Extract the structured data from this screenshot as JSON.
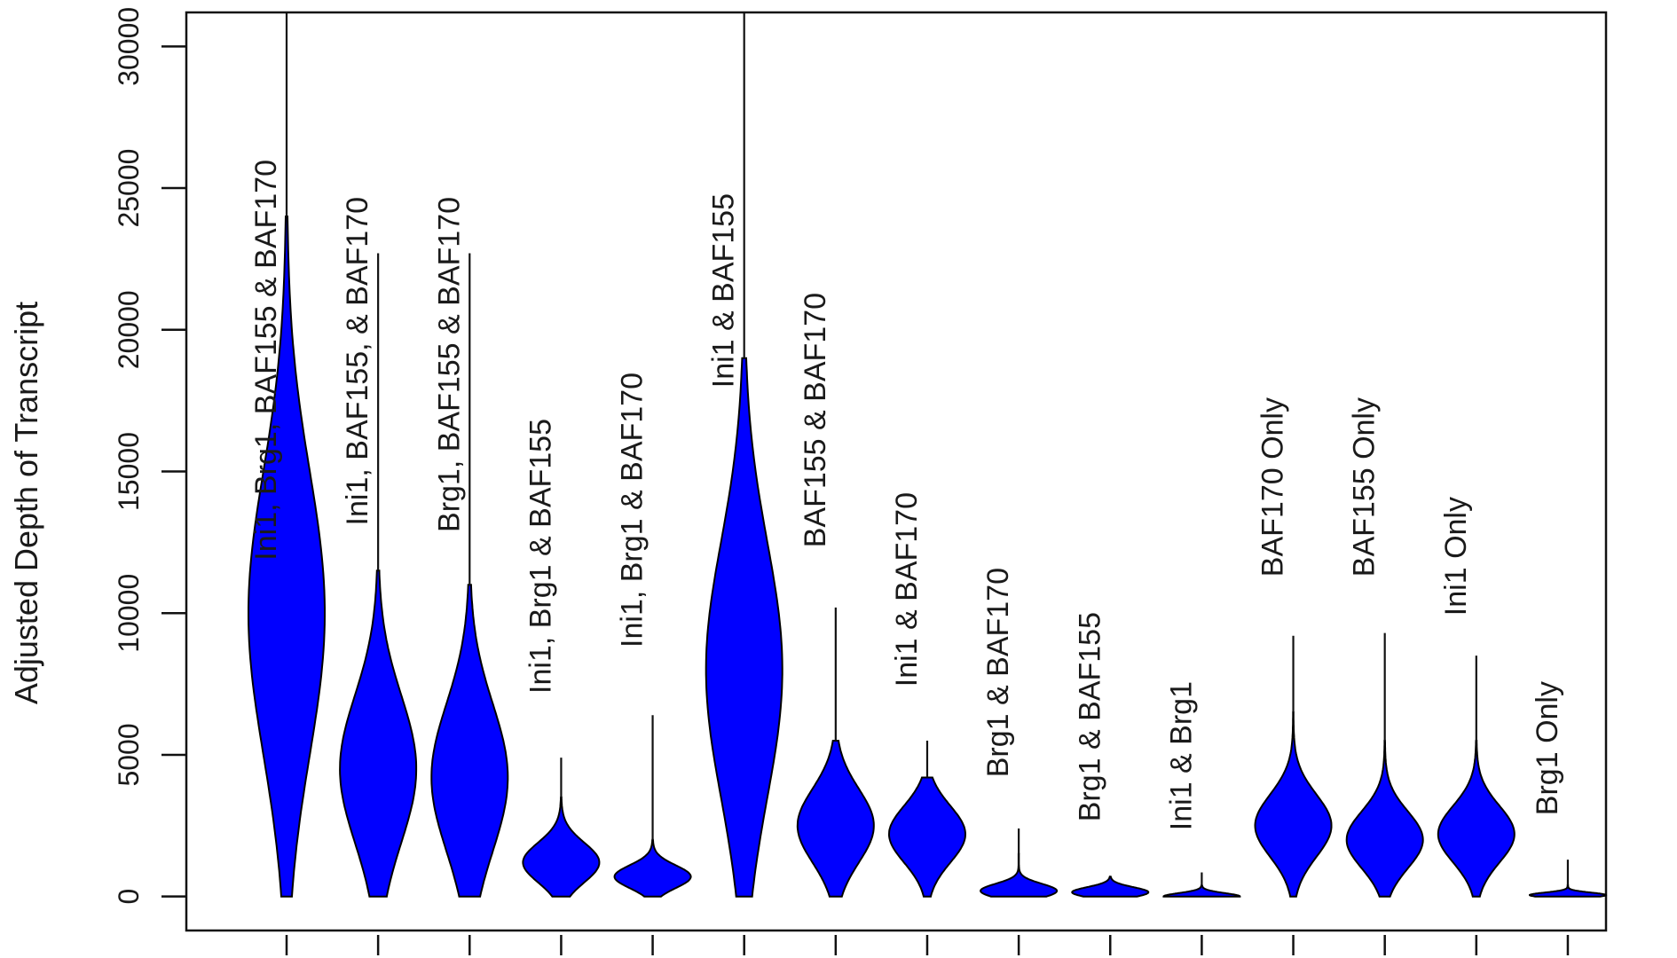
{
  "chart_data": {
    "type": "violin",
    "title": "",
    "xlabel": "",
    "ylabel": "Adjusted Depth of Transcript",
    "ylim": [
      -1200,
      31200
    ],
    "yticks": [
      0,
      5000,
      10000,
      15000,
      20000,
      25000,
      30000
    ],
    "grid": false,
    "fill_color": "#0000ff",
    "outline_color": "#000000",
    "categories": [
      "Ini1, Brg1, BAF155 & BAF170",
      "Ini1, BAF155, & BAF170",
      "Brg1, BAF155 & BAF170",
      "Ini1, Brg1 & BAF155",
      "Ini1, Brg1 & BAF170",
      "Ini1 & BAF155",
      "BAF155 & BAF170",
      "Ini1 & BAF170",
      "Brg1 & BAF170",
      "Brg1 & BAF155",
      "Ini1 & Brg1",
      "BAF170 Only",
      "BAF155 Only",
      "Ini1 Only",
      "Brg1 Only"
    ],
    "series": [
      {
        "max": 31200,
        "violin_top": 24000,
        "mode": 10000,
        "spread": 5000
      },
      {
        "max": 22700,
        "violin_top": 11500,
        "mode": 4500,
        "spread": 2600
      },
      {
        "max": 22700,
        "violin_top": 11000,
        "mode": 4200,
        "spread": 2600
      },
      {
        "max": 4900,
        "violin_top": 3500,
        "mode": 1200,
        "spread": 700
      },
      {
        "max": 6400,
        "violin_top": 2000,
        "mode": 700,
        "spread": 400
      },
      {
        "max": 31200,
        "violin_top": 19000,
        "mode": 8000,
        "spread": 4500
      },
      {
        "max": 10200,
        "violin_top": 5500,
        "mode": 2500,
        "spread": 1300
      },
      {
        "max": 5500,
        "violin_top": 4200,
        "mode": 2200,
        "spread": 1000
      },
      {
        "max": 2400,
        "violin_top": 1500,
        "mode": 200,
        "spread": 250
      },
      {
        "max": 700,
        "violin_top": 700,
        "mode": 150,
        "spread": 180
      },
      {
        "max": 850,
        "violin_top": 400,
        "mode": 0,
        "spread": 120
      },
      {
        "max": 9200,
        "violin_top": 6500,
        "mode": 2500,
        "spread": 1100
      },
      {
        "max": 9300,
        "violin_top": 5500,
        "mode": 2000,
        "spread": 1000
      },
      {
        "max": 8500,
        "violin_top": 5500,
        "mode": 2200,
        "spread": 1000
      },
      {
        "max": 1300,
        "violin_top": 400,
        "mode": 50,
        "spread": 90
      }
    ]
  }
}
